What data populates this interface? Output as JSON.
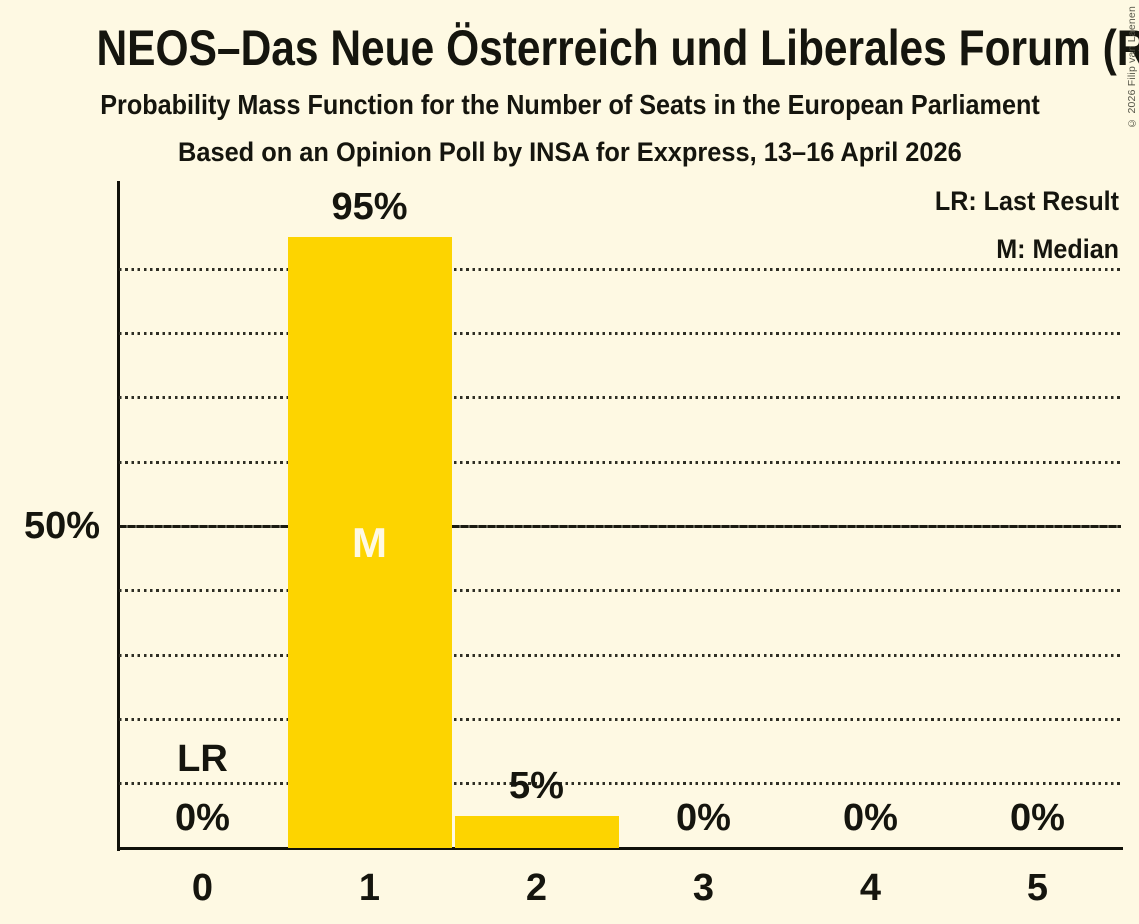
{
  "copyright": "© 2026 Filip van Laenen",
  "chart_data": {
    "type": "bar",
    "title": "NEOS–Das Neue Österreich und Liberales Forum (RE)",
    "subtitle": "Probability Mass Function for the Number of Seats in the European Parliament",
    "source_line": "Based on an Opinion Poll by INSA for Exxpress, 13–16 April 2026",
    "categories": [
      "0",
      "1",
      "2",
      "3",
      "4",
      "5"
    ],
    "values": [
      0,
      95,
      5,
      0,
      0,
      0
    ],
    "value_labels": [
      "0%",
      "95%",
      "5%",
      "0%",
      "0%",
      "0%"
    ],
    "ylim": [
      0,
      100
    ],
    "y_gridline_interval_pct": 10,
    "y_solid_line_pct": 50,
    "y_tick_label": "50%",
    "grid": "horizontal dotted lines every 10%, solid line at 50%",
    "legend_position": "top-right",
    "legend": [
      {
        "abbr": "LR",
        "label": "LR: Last Result"
      },
      {
        "abbr": "M",
        "label": "M: Median"
      }
    ],
    "median": {
      "category": "1",
      "marker": "M"
    },
    "last_result": {
      "category": "0",
      "marker": "LR"
    },
    "colors": {
      "bar": "#FDD400",
      "background": "#FEF9E3",
      "text": "#15150E",
      "bar_marker_text": "#FEF9E3"
    }
  }
}
